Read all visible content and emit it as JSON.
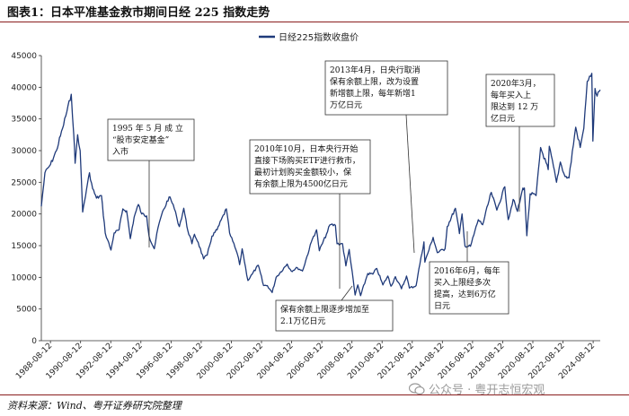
{
  "title": "图表1：日本平准基金救市期间日经 225 指数走势",
  "source": "资料来源：Wind、粤开证券研究院整理",
  "watermark": "公众号 · 粤开志恒宏观",
  "colors": {
    "line": "#1f3a7a",
    "rule": "#8a1d1d"
  },
  "chart_data": {
    "type": "line",
    "legend": "日经225指数收盘价",
    "legend_position": "top-center",
    "ylim": [
      0,
      45000
    ],
    "y_ticks": [
      0,
      5000,
      10000,
      15000,
      20000,
      25000,
      30000,
      35000,
      40000,
      45000
    ],
    "x_range": [
      "1988-01-04",
      "2025-01-31"
    ],
    "x_tick_labels": [
      "1988-08-12",
      "1990-08-12",
      "1992-08-12",
      "1994-08-12",
      "1996-08-12",
      "1998-08-12",
      "2000-08-12",
      "2002-08-12",
      "2004-08-12",
      "2006-08-12",
      "2008-08-12",
      "2010-08-12",
      "2012-08-12",
      "2014-08-12",
      "2016-08-12",
      "2018-08-12",
      "2020-08-12",
      "2022-08-12",
      "2024-08-12"
    ],
    "grid": false,
    "series": [
      {
        "name": "日经225指数收盘价",
        "points": [
          [
            "1988-01-04",
            21200
          ],
          [
            "1988-04-01",
            26500
          ],
          [
            "1988-08-12",
            27800
          ],
          [
            "1989-01-04",
            30000
          ],
          [
            "1989-06-01",
            33500
          ],
          [
            "1989-12-29",
            38900
          ],
          [
            "1990-03-01",
            32500
          ],
          [
            "1990-04-02",
            28000
          ],
          [
            "1990-06-01",
            32500
          ],
          [
            "1990-08-01",
            30000
          ],
          [
            "1990-10-01",
            20300
          ],
          [
            "1991-01-02",
            23800
          ],
          [
            "1991-03-15",
            26500
          ],
          [
            "1991-06-01",
            24000
          ],
          [
            "1991-09-01",
            22500
          ],
          [
            "1991-12-30",
            22900
          ],
          [
            "1992-04-01",
            17000
          ],
          [
            "1992-08-18",
            14300
          ],
          [
            "1992-11-01",
            17000
          ],
          [
            "1993-03-01",
            17500
          ],
          [
            "1993-06-01",
            20800
          ],
          [
            "1993-09-01",
            20500
          ],
          [
            "1993-11-29",
            16100
          ],
          [
            "1994-03-01",
            19500
          ],
          [
            "1994-06-13",
            21500
          ],
          [
            "1994-09-01",
            20000
          ],
          [
            "1994-12-30",
            19700
          ],
          [
            "1995-03-01",
            16400
          ],
          [
            "1995-07-03",
            14500
          ],
          [
            "1995-10-01",
            17800
          ],
          [
            "1995-12-29",
            19900
          ],
          [
            "1996-06-26",
            22700
          ],
          [
            "1996-10-01",
            21500
          ],
          [
            "1996-12-30",
            19400
          ],
          [
            "1997-03-01",
            18000
          ],
          [
            "1997-06-16",
            20900
          ],
          [
            "1997-09-01",
            18000
          ],
          [
            "1997-12-30",
            15300
          ],
          [
            "1998-03-01",
            16800
          ],
          [
            "1998-06-01",
            15500
          ],
          [
            "1998-10-09",
            12900
          ],
          [
            "1999-01-04",
            13500
          ],
          [
            "1999-05-01",
            16500
          ],
          [
            "1999-09-01",
            17500
          ],
          [
            "2000-04-12",
            20800
          ],
          [
            "2000-07-01",
            17000
          ],
          [
            "2000-12-29",
            13800
          ],
          [
            "2001-03-01",
            12000
          ],
          [
            "2001-05-01",
            14500
          ],
          [
            "2001-09-17",
            9500
          ],
          [
            "2001-12-28",
            10500
          ],
          [
            "2002-05-27",
            11900
          ],
          [
            "2002-10-01",
            8700
          ],
          [
            "2003-01-01",
            8700
          ],
          [
            "2003-04-28",
            7600
          ],
          [
            "2003-08-01",
            10000
          ],
          [
            "2004-04-26",
            12100
          ],
          [
            "2004-08-01",
            11000
          ],
          [
            "2004-12-30",
            11500
          ],
          [
            "2005-05-01",
            11000
          ],
          [
            "2005-12-30",
            16100
          ],
          [
            "2006-04-07",
            17500
          ],
          [
            "2006-06-14",
            14200
          ],
          [
            "2006-12-29",
            17200
          ],
          [
            "2007-02-26",
            18300
          ],
          [
            "2007-07-09",
            18200
          ],
          [
            "2007-08-17",
            15300
          ],
          [
            "2007-12-28",
            15300
          ],
          [
            "2008-03-17",
            11800
          ],
          [
            "2008-06-06",
            14400
          ],
          [
            "2008-10-28",
            7200
          ],
          [
            "2009-01-01",
            8800
          ],
          [
            "2009-03-10",
            7100
          ],
          [
            "2009-08-30",
            10600
          ],
          [
            "2009-12-30",
            10500
          ],
          [
            "2010-04-05",
            11400
          ],
          [
            "2010-08-31",
            8800
          ],
          [
            "2010-12-30",
            10200
          ],
          [
            "2011-03-15",
            8600
          ],
          [
            "2011-07-01",
            10100
          ],
          [
            "2011-11-25",
            8200
          ],
          [
            "2012-03-27",
            10200
          ],
          [
            "2012-06-04",
            8300
          ],
          [
            "2012-11-14",
            8700
          ],
          [
            "2012-12-28",
            10400
          ],
          [
            "2013-05-22",
            15600
          ],
          [
            "2013-06-13",
            12400
          ],
          [
            "2013-12-30",
            16300
          ],
          [
            "2014-04-11",
            13900
          ],
          [
            "2014-10-17",
            14500
          ],
          [
            "2014-12-08",
            18000
          ],
          [
            "2015-06-24",
            20900
          ],
          [
            "2015-09-29",
            16900
          ],
          [
            "2015-12-01",
            20000
          ],
          [
            "2016-02-12",
            14900
          ],
          [
            "2016-06-24",
            14900
          ],
          [
            "2016-12-30",
            19100
          ],
          [
            "2017-04-14",
            18300
          ],
          [
            "2017-11-09",
            23400
          ],
          [
            "2018-03-23",
            20600
          ],
          [
            "2018-10-02",
            24300
          ],
          [
            "2018-12-25",
            19100
          ],
          [
            "2019-04-24",
            22300
          ],
          [
            "2019-08-06",
            20400
          ],
          [
            "2019-12-17",
            24100
          ],
          [
            "2020-01-20",
            24100
          ],
          [
            "2020-03-19",
            16550
          ],
          [
            "2020-06-08",
            23200
          ],
          [
            "2020-10-30",
            22900
          ],
          [
            "2021-02-16",
            30500
          ],
          [
            "2021-08-20",
            27000
          ],
          [
            "2021-09-14",
            30700
          ],
          [
            "2022-03-08",
            25000
          ],
          [
            "2022-06-09",
            28200
          ],
          [
            "2022-10-03",
            25900
          ],
          [
            "2023-01-04",
            25700
          ],
          [
            "2023-06-16",
            33700
          ],
          [
            "2023-10-04",
            30500
          ],
          [
            "2023-12-29",
            33500
          ],
          [
            "2024-03-22",
            40900
          ],
          [
            "2024-07-11",
            42200
          ],
          [
            "2024-08-05",
            31500
          ],
          [
            "2024-09-27",
            39800
          ],
          [
            "2024-11-15",
            38600
          ],
          [
            "2025-01-31",
            39600
          ]
        ]
      }
    ],
    "annotations": [
      {
        "name": "annotation-1995",
        "lines": [
          "1995 年 5 月 成 立",
          "“股市安定基金”",
          "入市"
        ],
        "bold_last": false
      },
      {
        "name": "annotation-2010",
        "lines": [
          "2010年10月，日本央行开始",
          "直接下场购买ETF进行救市，",
          "最初计划购买金额较小，保",
          "有余额上限为4500亿日元"
        ],
        "bold_last": false
      },
      {
        "name": "annotation-2013",
        "lines": [
          "2013年4月，日央行取消",
          "保有余额上限，改为设置",
          "新增额上限，每年新增1",
          "万亿日元"
        ],
        "bold_last": false
      },
      {
        "name": "annotation-2020",
        "lines": [
          "2020年3月，",
          "每年买入上",
          "限达到 12 万",
          "亿日元"
        ],
        "bold_last": false
      },
      {
        "name": "annotation-2016",
        "lines": [
          "2016年6月，每年",
          "买入上限经多次",
          "提高，达到6万亿",
          "日元"
        ],
        "bold_last": false
      },
      {
        "name": "annotation-holdings",
        "lines": [
          "保有余额上限逐步增加至",
          "2.1万亿日元"
        ],
        "bold_last": false
      }
    ]
  }
}
